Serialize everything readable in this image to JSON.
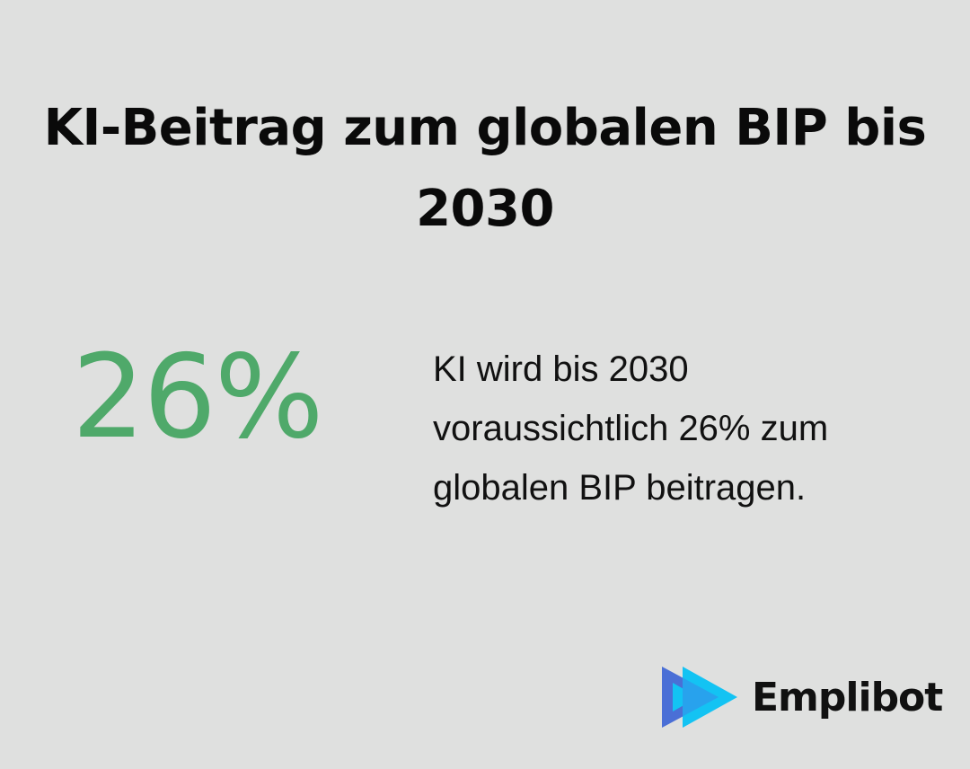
{
  "title": "KI-Beitrag zum globalen BIP bis 2030",
  "stat": "26%",
  "description": "KI wird bis 2030 voraussichtlich 26% zum globalen BIP beitragen.",
  "logo": {
    "text": "Emplibot",
    "icon": "play-arrows-icon"
  },
  "colors": {
    "accent": "#4fa96a",
    "background": "#dfe0df",
    "logo_blue": "#4a6fd6",
    "logo_cyan": "#13c3f3"
  }
}
